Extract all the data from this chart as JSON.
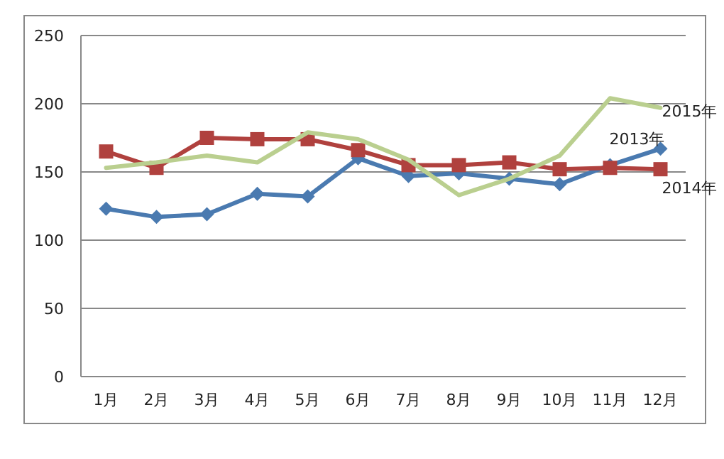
{
  "chart_data": {
    "type": "line",
    "categories": [
      "1月",
      "2月",
      "3月",
      "4月",
      "5月",
      "6月",
      "7月",
      "8月",
      "9月",
      "10月",
      "11月",
      "12月"
    ],
    "series": [
      {
        "name": "2013年",
        "color": "#4a7ab0",
        "marker": "diamond",
        "values": [
          123,
          117,
          119,
          134,
          132,
          160,
          147,
          149,
          145,
          141,
          155,
          167
        ]
      },
      {
        "name": "2014年",
        "color": "#b0413e",
        "marker": "square",
        "values": [
          165,
          153,
          175,
          174,
          174,
          166,
          155,
          155,
          157,
          152,
          153,
          152
        ]
      },
      {
        "name": "2015年",
        "color": "#bacf8f",
        "marker": "none",
        "values": [
          153,
          157,
          162,
          157,
          179,
          174,
          159,
          133,
          145,
          162,
          204,
          197
        ]
      }
    ],
    "ylim": [
      0,
      250
    ],
    "yticks": [
      0,
      50,
      100,
      150,
      200,
      250
    ],
    "grid": "y",
    "line_style": "solid"
  }
}
